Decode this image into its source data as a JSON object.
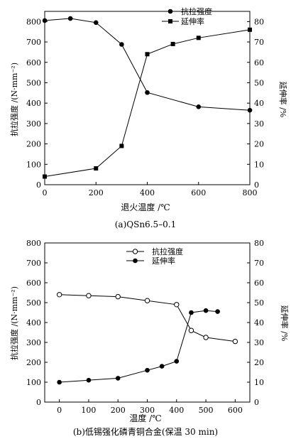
{
  "chart_data": [
    {
      "type": "line",
      "caption": "(a)QSn6.5–0.1",
      "xlabel": "退火温度 /℃",
      "ylabel_left": "抗拉强度 /(N·mm⁻²)",
      "ylabel_right": "延伸率 /%",
      "xlim": [
        0,
        800
      ],
      "ylim_left": [
        0,
        850
      ],
      "ylim_right": [
        0,
        85
      ],
      "x_ticks": [
        0,
        200,
        400,
        600,
        800
      ],
      "y_ticks_left": [
        0,
        100,
        200,
        300,
        400,
        500,
        600,
        700,
        800
      ],
      "y_ticks_right": [
        0,
        10,
        20,
        30,
        40,
        50,
        60,
        70,
        80
      ],
      "legend_position": "top-right",
      "grid": false,
      "series": [
        {
          "name": "抗拉强度",
          "axis": "left",
          "marker": "filled-circle",
          "x": [
            0,
            100,
            200,
            300,
            400,
            600,
            800
          ],
          "values": [
            805,
            815,
            795,
            688,
            452,
            382,
            365
          ]
        },
        {
          "name": "延伸率",
          "axis": "right",
          "marker": "filled-square",
          "x": [
            0,
            200,
            300,
            400,
            500,
            600,
            800
          ],
          "values": [
            4,
            8,
            19,
            64,
            69,
            72,
            76
          ]
        }
      ]
    },
    {
      "type": "line",
      "caption": "(b)低锡强化磷青铜合金(保温 30 min)",
      "xlabel": "温度 /℃",
      "ylabel_left": "抗拉强度 /(N·mm⁻²)",
      "ylabel_right": "延伸率 /%",
      "xlim": [
        -50,
        650
      ],
      "ylim_left": [
        0,
        800
      ],
      "ylim_right": [
        0,
        80
      ],
      "x_ticks": [
        0,
        100,
        200,
        300,
        400,
        500,
        600
      ],
      "y_ticks_left": [
        0,
        100,
        200,
        300,
        400,
        500,
        600,
        700,
        800
      ],
      "y_ticks_right": [
        0,
        10,
        20,
        30,
        40,
        50,
        60,
        70,
        80
      ],
      "legend_position": "top-center",
      "grid": false,
      "series": [
        {
          "name": "抗拉强度",
          "axis": "left",
          "marker": "open-circle",
          "x": [
            0,
            100,
            200,
            300,
            400,
            450,
            500,
            600
          ],
          "values": [
            540,
            535,
            530,
            510,
            490,
            360,
            325,
            305
          ]
        },
        {
          "name": "延伸率",
          "axis": "right",
          "marker": "filled-circle",
          "x": [
            0,
            100,
            200,
            300,
            350,
            400,
            450,
            500,
            540
          ],
          "values": [
            10,
            11,
            12,
            16,
            18,
            20.5,
            45,
            46,
            45.5
          ]
        }
      ]
    }
  ]
}
